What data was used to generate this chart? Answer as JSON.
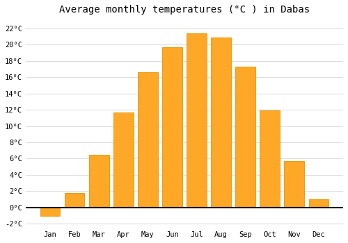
{
  "title": "Average monthly temperatures (°C ) in Dabas",
  "months": [
    "Jan",
    "Feb",
    "Mar",
    "Apr",
    "May",
    "Jun",
    "Jul",
    "Aug",
    "Sep",
    "Oct",
    "Nov",
    "Dec"
  ],
  "values": [
    -1.0,
    1.8,
    6.5,
    11.7,
    16.6,
    19.7,
    21.4,
    20.9,
    17.3,
    11.9,
    5.7,
    1.0
  ],
  "bar_color": "#FFA726",
  "bar_edge_color": "#E59400",
  "ylim": [
    -2.5,
    23
  ],
  "yticks": [
    -2,
    0,
    2,
    4,
    6,
    8,
    10,
    12,
    14,
    16,
    18,
    20,
    22
  ],
  "background_color": "#ffffff",
  "plot_bg_color": "#ffffff",
  "grid_color": "#dddddd",
  "title_fontsize": 10,
  "bar_width": 0.82
}
